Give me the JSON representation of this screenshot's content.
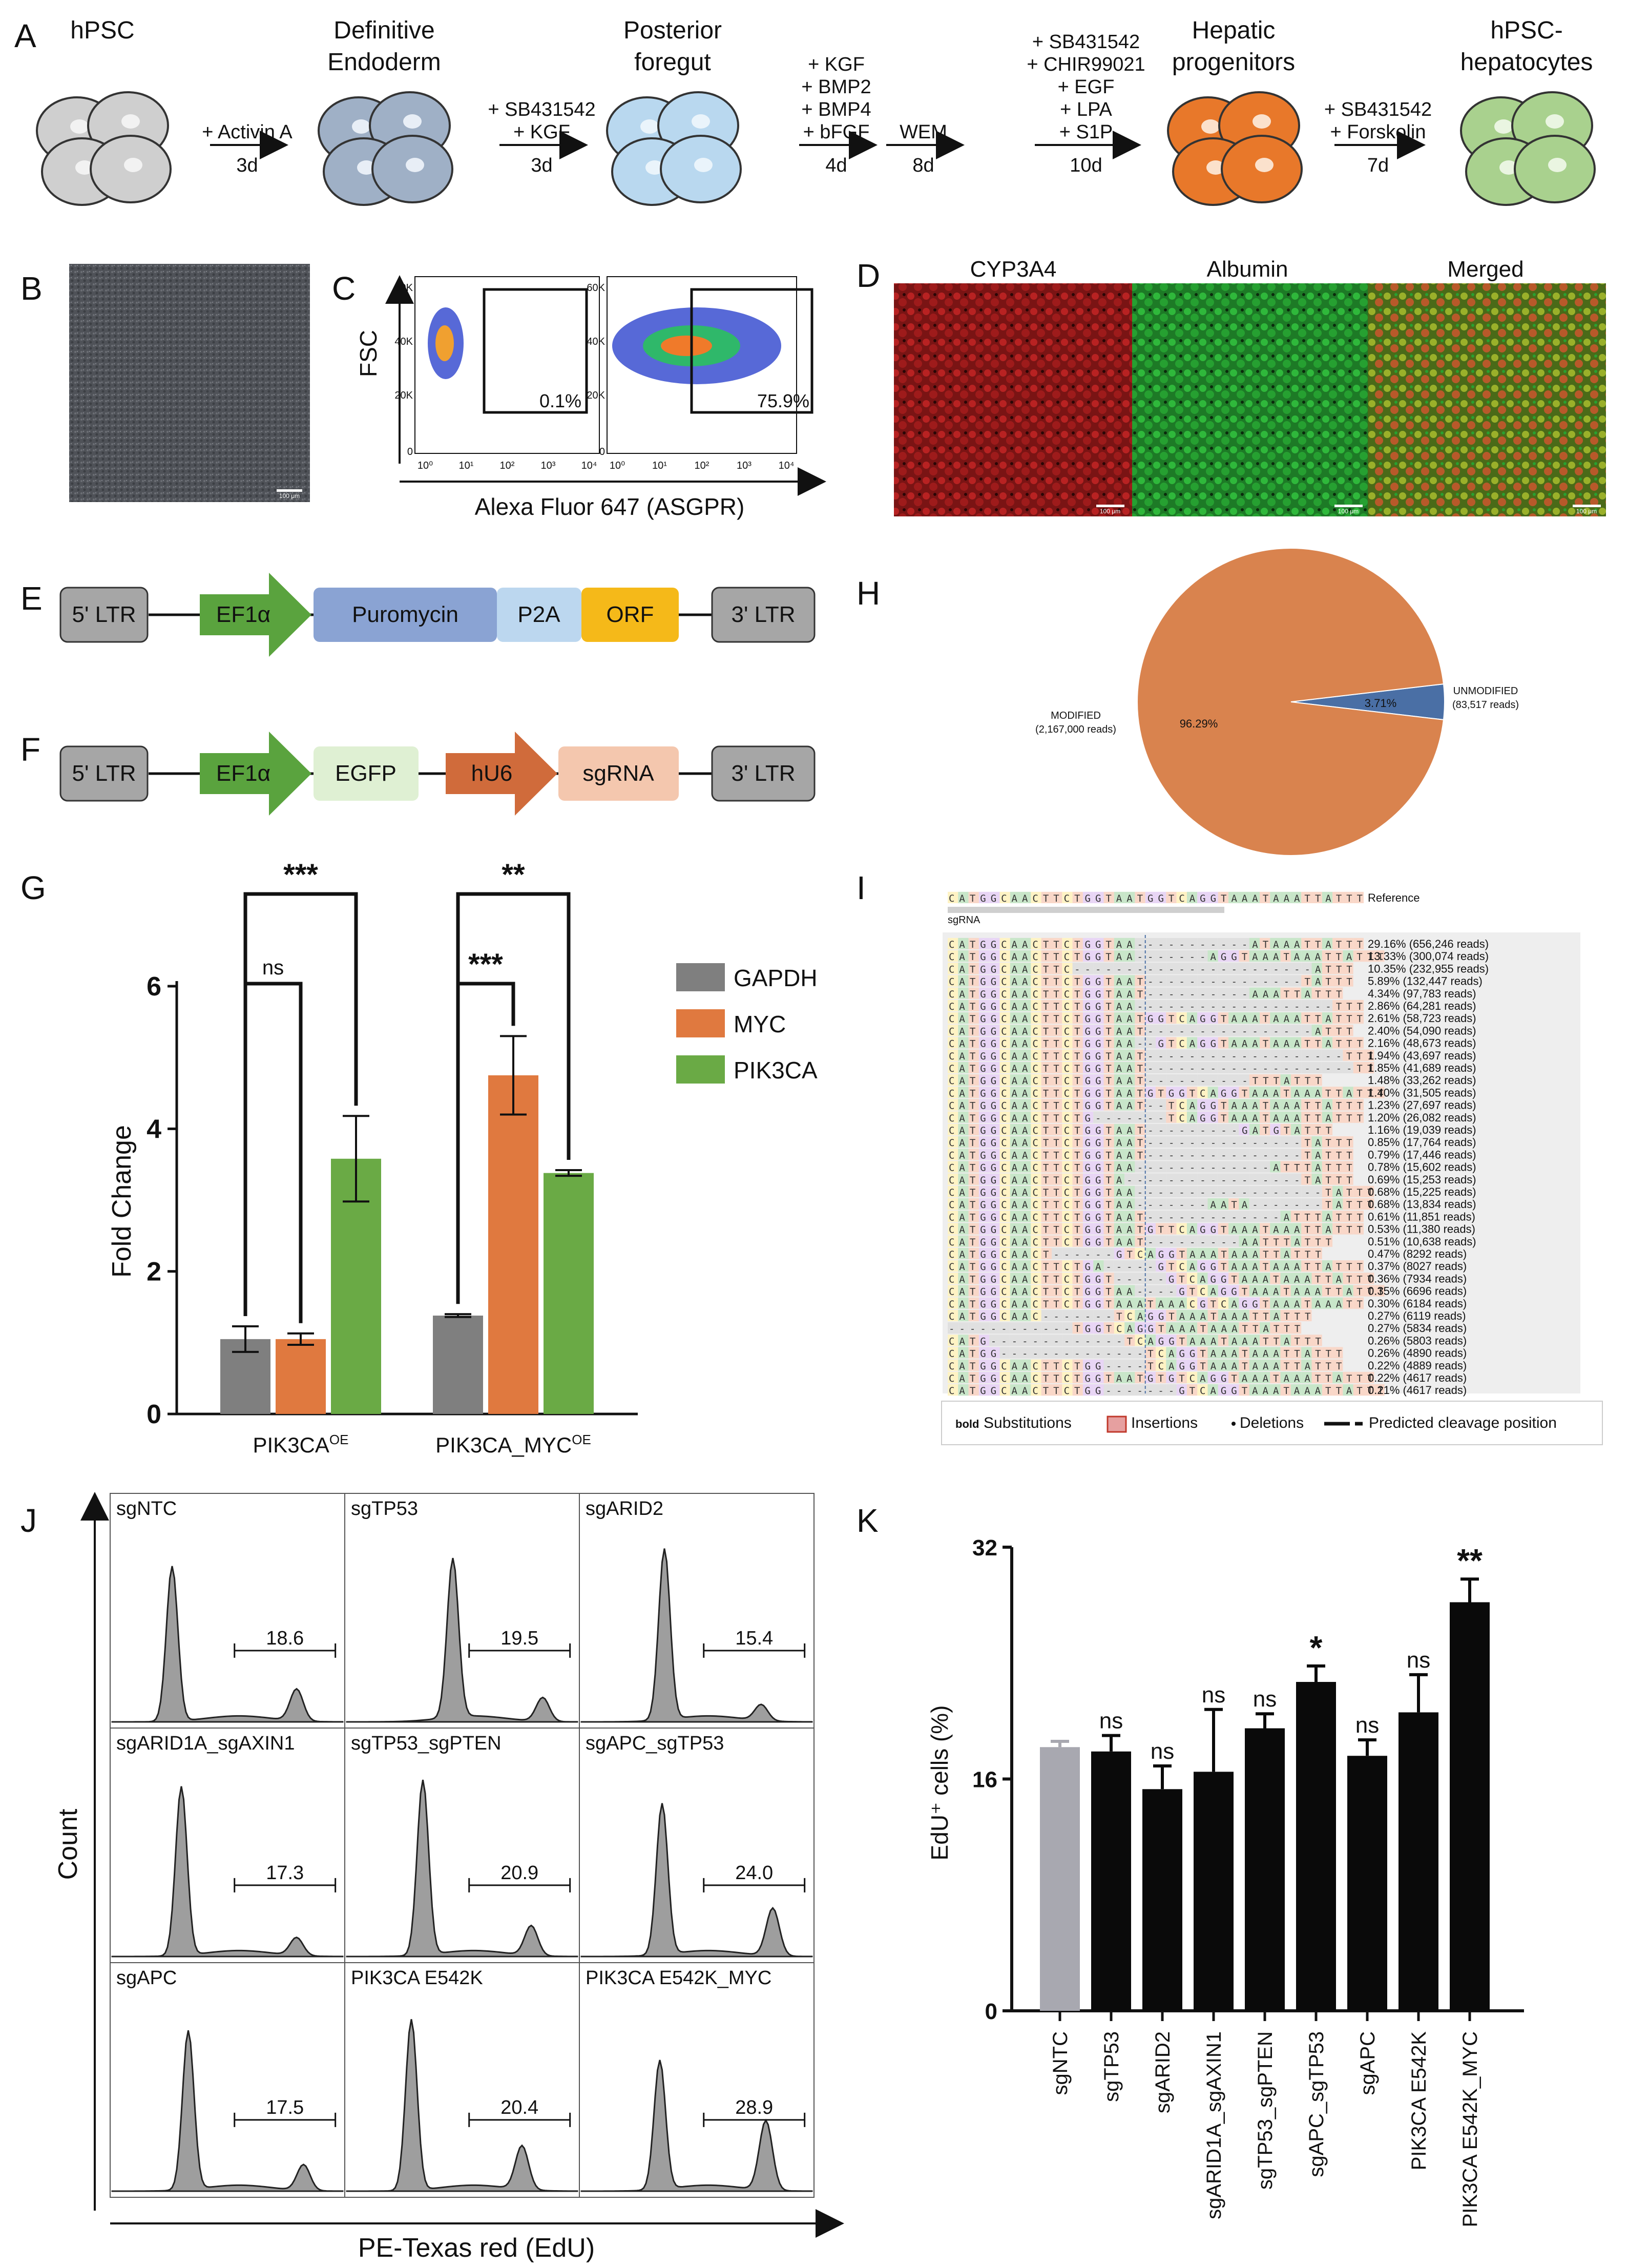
{
  "panel_letters": [
    "A",
    "B",
    "C",
    "D",
    "E",
    "F",
    "G",
    "H",
    "I",
    "J",
    "K"
  ],
  "panelA": {
    "stages": [
      {
        "title": [
          "hPSC"
        ],
        "color": "#cfcfcf",
        "nucleus": "#f2f2f2"
      },
      {
        "title": [
          "Definitive",
          "Endoderm"
        ],
        "color": "#9fb0c6",
        "nucleus": "#e8eef6"
      },
      {
        "title": [
          "Posterior",
          "foregut"
        ],
        "color": "#b9d8ef",
        "nucleus": "#eaf4fb"
      },
      {
        "title": [
          "Hepatic",
          "progenitors"
        ],
        "color": "#e8782a",
        "nucleus": "#fbe1cc"
      },
      {
        "title": [
          "hPSC-",
          "hepatocytes"
        ],
        "color": "#a9d18e",
        "nucleus": "#eaf5e1"
      }
    ],
    "steps": [
      {
        "factors": [
          "+ Activin A"
        ],
        "days": "3d"
      },
      {
        "factors": [
          "+ SB431542",
          "+ KGF"
        ],
        "days": "3d"
      },
      {
        "factors": [
          "+ KGF",
          "+ BMP2",
          "+ BMP4",
          "+ bFGF"
        ],
        "days": "4d"
      },
      {
        "factors": [
          "WEM"
        ],
        "days": "8d"
      },
      {
        "factors": [
          "+ SB431542",
          "+ CHIR99021",
          "+ EGF",
          "+ LPA",
          "+ S1P"
        ],
        "days": "10d"
      },
      {
        "factors": [
          "+ SB431542",
          "+ Forskolin"
        ],
        "days": "7d"
      }
    ]
  },
  "panelB": {
    "scale_bar": "100 μm"
  },
  "panelC": {
    "y_label": "FSC",
    "x_label": "Alexa Fluor 647 (ASGPR)",
    "y_ticks": [
      "60K",
      "40K",
      "20K",
      "0"
    ],
    "x_ticks": [
      "10⁰",
      "10¹",
      "10²",
      "10³",
      "10⁴"
    ],
    "gates": [
      "0.1%",
      "75.9%"
    ]
  },
  "panelD": {
    "titles": [
      "CYP3A4",
      "Albumin",
      "Merged"
    ],
    "scale_bar": "100 μm"
  },
  "panelE": {
    "parts": [
      "5' LTR",
      "EF1α",
      "Puromycin",
      "P2A",
      "ORF",
      "3' LTR"
    ]
  },
  "panelF": {
    "parts": [
      "5' LTR",
      "EF1α",
      "EGFP",
      "hU6",
      "sgRNA",
      "3' LTR"
    ]
  },
  "colors": {
    "gray": "#7f7f7f",
    "orange": "#e0793f",
    "green": "#6aaa45",
    "pie_orange": "#d9834e",
    "pie_blue": "#4a6fa5"
  },
  "chart_data": [
    {
      "panel": "G",
      "type": "bar",
      "ylabel": "Fold Change",
      "ylim": [
        0,
        6
      ],
      "yticks": [
        "0",
        "2",
        "4",
        "6"
      ],
      "categories": [
        "PIK3CA",
        "PIK3CA_MYC"
      ],
      "category_sup": "OE",
      "series": [
        {
          "name": "GAPDH",
          "values": [
            1.05,
            1.38
          ],
          "errors": [
            0.18,
            0.02
          ]
        },
        {
          "name": "MYC",
          "values": [
            1.05,
            4.75
          ],
          "errors": [
            0.08,
            0.55
          ]
        },
        {
          "name": "PIK3CA",
          "values": [
            3.58,
            3.38
          ],
          "errors": [
            0.6,
            0.04
          ]
        }
      ],
      "significance": [
        "***",
        "ns",
        "**",
        "***"
      ]
    },
    {
      "panel": "H",
      "type": "pie",
      "slices": [
        {
          "label": "MODIFIED",
          "reads": "(2,167,000 reads)",
          "value": 96.29,
          "pct": "96.29%"
        },
        {
          "label": "UNMODIFIED",
          "reads": "(83,517 reads)",
          "value": 3.71,
          "pct": "3.71%"
        }
      ]
    },
    {
      "panel": "J",
      "type": "histogram",
      "x_label": "PE-Texas red (EdU)",
      "y_label": "Count",
      "panels": [
        {
          "name": "sgNTC",
          "value": "18.6"
        },
        {
          "name": "sgTP53",
          "value": "19.5"
        },
        {
          "name": "sgARID2",
          "value": "15.4"
        },
        {
          "name": "sgARID1A_sgAXIN1",
          "value": "17.3"
        },
        {
          "name": "sgTP53_sgPTEN",
          "value": "20.9"
        },
        {
          "name": "sgAPC_sgTP53",
          "value": "24.0"
        },
        {
          "name": "sgAPC",
          "value": "17.5"
        },
        {
          "name": "PIK3CA E542K",
          "value": "20.4"
        },
        {
          "name": "PIK3CA E542K_MYC",
          "value": "28.9"
        }
      ]
    },
    {
      "panel": "K",
      "type": "bar",
      "ylabel": "EdU⁺ cells (%)",
      "ylim": [
        0,
        32
      ],
      "yticks": [
        "0",
        "16",
        "32"
      ],
      "categories": [
        "sgNTC",
        "sgTP53",
        "sgARID2",
        "sgARID1A_sgAXIN1",
        "sgTP53_sgPTEN",
        "sgAPC_sgTP53",
        "sgAPC",
        "PIK3CA E542K",
        "PIK3CA E542K_MYC"
      ],
      "values": [
        18.2,
        17.9,
        15.3,
        16.5,
        19.5,
        22.7,
        17.6,
        20.6,
        28.2
      ],
      "errors": [
        0.4,
        1.1,
        1.6,
        4.3,
        1.0,
        1.1,
        1.1,
        2.6,
        1.6
      ],
      "labels": [
        "",
        "ns",
        "ns",
        "ns",
        "ns",
        "*",
        "ns",
        "ns",
        "**"
      ]
    }
  ],
  "panelI": {
    "reference_seq": "CATGGCAACTTCTGGTAATGGTCAGGTAAATAAATTATTT",
    "reference_label": "Reference",
    "sgrna_label": "sgRNA",
    "rows": [
      {
        "seq": "CATGGCAACTTCTGGTAA-----------ATAAATTATTT",
        "pct": "29.16%",
        "reads": "(656,246 reads)"
      },
      {
        "seq": "CATGGCAACTTCTGGTAA-------AGGTAAATAAATTATTT",
        "pct": "13.33%",
        "reads": "(300,074 reads)"
      },
      {
        "seq": "CATGGCAACTTC-----------------------ATTT",
        "pct": "10.35%",
        "reads": "(232,955 reads)"
      },
      {
        "seq": "CATGGCAACTTCTGGTAAT---------------TATTT",
        "pct": "5.89%",
        "reads": "(132,447 reads)"
      },
      {
        "seq": "CATGGCAACTTCTGGTAAT----------AAATTATTT",
        "pct": "4.34%",
        "reads": "(97,783 reads)"
      },
      {
        "seq": "CATGGCAACTTCTGGTAA-------------------TTT",
        "pct": "2.86%",
        "reads": "(64,281 reads)"
      },
      {
        "seq": "CATGGCAACTTCTGGTAATGGTCAGGTAAATAAATTATTT",
        "pct": "2.61%",
        "reads": "(58,723 reads)"
      },
      {
        "seq": "CATGGCAACTTCTGGTAAT----------------ATTT",
        "pct": "2.40%",
        "reads": "(54,090 reads)"
      },
      {
        "seq": "CATGGCAACTTCTGGTAA--GTCAGGTAAATAAATTATTT",
        "pct": "2.16%",
        "reads": "(48,673 reads)"
      },
      {
        "seq": "CATGGCAACTTCTGGTAAT-------------------TTT",
        "pct": "1.94%",
        "reads": "(43,697 reads)"
      },
      {
        "seq": "CATGGCAACTTCTGGTAAT--------------------TT",
        "pct": "1.85%",
        "reads": "(41,689 reads)"
      },
      {
        "seq": "CATGGCAACTTCTGGTAAT----------TTTATTT",
        "pct": "1.48%",
        "reads": "(33,262 reads)"
      },
      {
        "seq": "CATGGCAACTTCTGGTAATGTGGTCAGGTAAATAAATTATTT",
        "pct": "1.40%",
        "reads": "(31,505 reads)"
      },
      {
        "seq": "CATGGCAACTTCTGGTAAT--TCAGGTAAATAAATTATTT",
        "pct": "1.23%",
        "reads": "(27,697 reads)"
      },
      {
        "seq": "CATGGCAACTTCTG-------TCAGGTAAATAAATTATTT",
        "pct": "1.20%",
        "reads": "(26,082 reads)"
      },
      {
        "seq": "CATGGCAACTTCTGGTAAT---------GATGTATTT",
        "pct": "1.16%",
        "reads": "(19,039 reads)"
      },
      {
        "seq": "CATGGCAACTTCTGGTAAT---------------TATTT",
        "pct": "0.85%",
        "reads": "(17,764 reads)"
      },
      {
        "seq": "CATGGCAACTTCTGGTAAT---------------TATTT",
        "pct": "0.79%",
        "reads": "(17,446 reads)"
      },
      {
        "seq": "CATGGCAACTTCTGGTAA-------------ATTTATTT",
        "pct": "0.78%",
        "reads": "(15,602 reads)"
      },
      {
        "seq": "CATGGCAACTTCTGGTA-----------------TATTT",
        "pct": "0.69%",
        "reads": "(15,253 reads)"
      },
      {
        "seq": "CATGGCAACTTCTGGTAA------------------TATTT",
        "pct": "0.68%",
        "reads": "(15,225 reads)"
      },
      {
        "seq": "CATGGCAACTTCTGGTAA-------AATA-------TATTT",
        "pct": "0.68%",
        "reads": "(13,834 reads)"
      },
      {
        "seq": "CATGGCAACTTCTGGTAAT-------------ATTTATTT",
        "pct": "0.61%",
        "reads": "(11,851 reads)"
      },
      {
        "seq": "CATGGCAACTTCTGGTAATGTTCAGGTAAATAAATTATTT",
        "pct": "0.53%",
        "reads": "(11,380 reads)"
      },
      {
        "seq": "CATGGCAACTTCTGGTAAT---------AATTTATTT",
        "pct": "0.51%",
        "reads": "(10,638 reads)"
      },
      {
        "seq": "CATGGCAACT------GTCAGGTAAATAAATTATTT",
        "pct": "0.47%",
        "reads": "(8292 reads)"
      },
      {
        "seq": "CATGGCAACTTCTGA-----GTCAGGTAAATAAATTATTT",
        "pct": "0.37%",
        "reads": "(8027 reads)"
      },
      {
        "seq": "CATGGCAACTTCTGGT-----GTCAGGTAAATAAATTATTT",
        "pct": "0.36%",
        "reads": "(7934 reads)"
      },
      {
        "seq": "CATGGCAACTTCTGGTAA----GTCAGGTAAATAAATTATTT",
        "pct": "0.35%",
        "reads": "(6696 reads)"
      },
      {
        "seq": "CATGGCAACTTCTGGTAAATAAACGTCAGGTAAATAAATT",
        "pct": "0.30%",
        "reads": "(6184 reads)"
      },
      {
        "seq": "CATGGCAAC-------TCAGGTAAATAAATTATTT",
        "pct": "0.27%",
        "reads": "(6119 reads)"
      },
      {
        "seq": "------------TGGTCAGGTAAATAAATTATTT",
        "pct": "0.27%",
        "reads": "(5834 reads)"
      },
      {
        "seq": "CATG-------------TCAGGTAAATAAATTATTT",
        "pct": "0.26%",
        "reads": "(5803 reads)"
      },
      {
        "seq": "CATGG--------------TCAGGTAAATAAATTATTT",
        "pct": "0.26%",
        "reads": "(4890 reads)"
      },
      {
        "seq": "CATGGCAACTTCTGG----TCAGGTAAATAAATTATTT",
        "pct": "0.22%",
        "reads": "(4889 reads)"
      },
      {
        "seq": "CATGGCAACTTCTGGTAATGTGTCAGGTAAATAAATTATTT",
        "pct": "0.22%",
        "reads": "(4617 reads)"
      },
      {
        "seq": "CATGGCAACTTCTGG-------GTCAGGTAAATAAATTATTT",
        "pct": "0.21%",
        "reads": "(4617 reads)"
      }
    ],
    "legend": {
      "bold": "bold",
      "substitutions": "Substitutions",
      "insertions": "Insertions",
      "deletions": "Deletions",
      "cleavage": "Predicted cleavage position"
    }
  }
}
